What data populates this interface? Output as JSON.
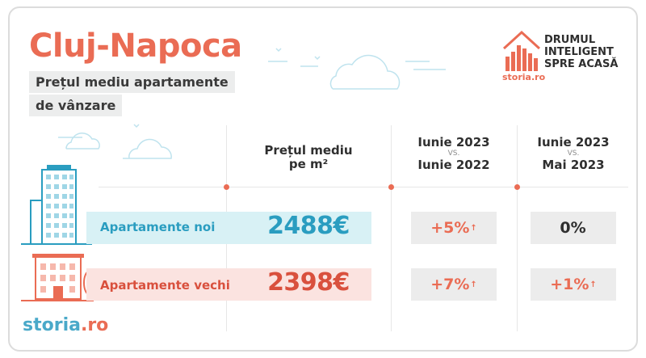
{
  "header": {
    "city": "Cluj-Napoca",
    "subtitle_line1": "Prețul mediu apartamente",
    "subtitle_line2": "de vânzare"
  },
  "brand": {
    "tagline_lines": [
      "DRUMUL",
      "INTELIGENT",
      "SPRE ACASĂ"
    ],
    "small_logo": "storia.ro",
    "bottom_logo_main": "storia",
    "bottom_logo_tld": ".ro"
  },
  "columns": {
    "price": {
      "line1": "Prețul mediu",
      "line2": "pe m²"
    },
    "yoy": {
      "top": "Iunie 2023",
      "vs": "VS.",
      "bottom": "Iunie 2022"
    },
    "mom": {
      "top": "Iunie 2023",
      "vs": "VS.",
      "bottom": "Mai 2023"
    }
  },
  "rows": [
    {
      "label": "Apartamente noi",
      "price": "2488€",
      "yoy": "+5%",
      "yoy_arrow": "↑",
      "mom": "0%",
      "mom_arrow": ""
    },
    {
      "label": "Apartamente vechi",
      "price": "2398€",
      "yoy": "+7%",
      "yoy_arrow": "↑",
      "mom": "+1%",
      "mom_arrow": "↑"
    }
  ],
  "colors": {
    "accent": "#ea6c54",
    "blue": "#2a9dc0",
    "red": "#d9503d",
    "band_blue": "#d8f1f5",
    "band_red": "#fbe3e0"
  }
}
